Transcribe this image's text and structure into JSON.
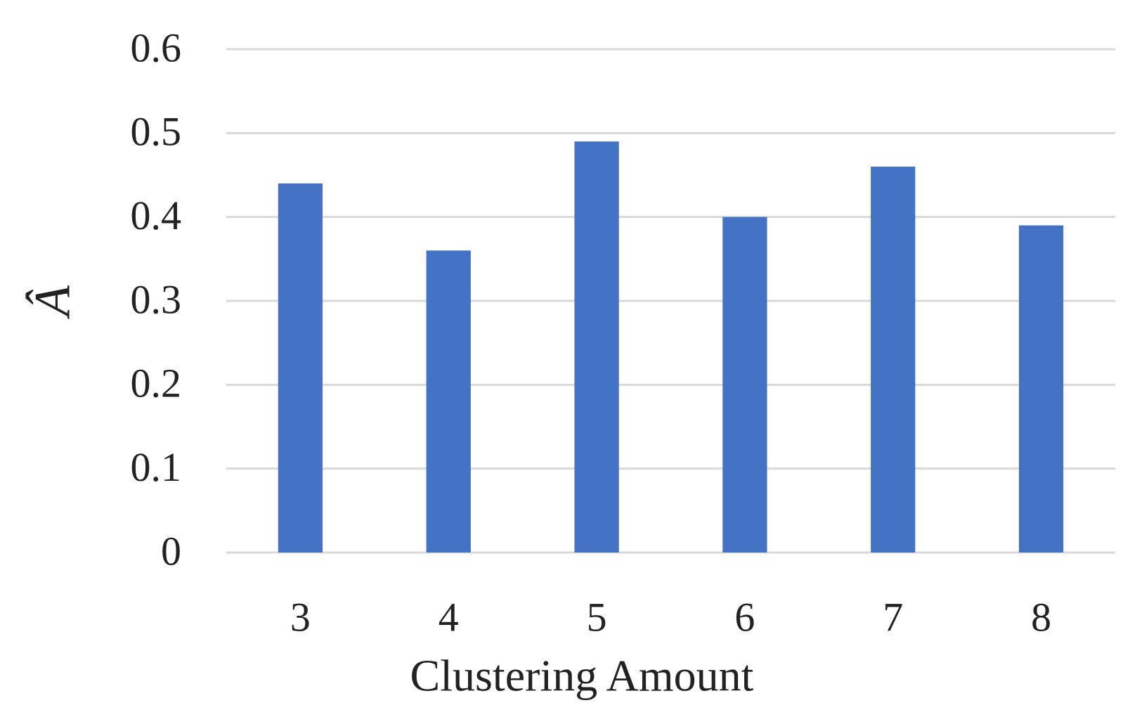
{
  "chart_data": {
    "type": "bar",
    "x_label": "Clustering Amount",
    "y_label": "Â",
    "categories": [
      "3",
      "4",
      "5",
      "6",
      "7",
      "8"
    ],
    "values": [
      0.44,
      0.36,
      0.49,
      0.4,
      0.46,
      0.39
    ],
    "color": "#4472c4",
    "ylim": [
      0,
      0.6
    ],
    "yticks": [
      0,
      0.1,
      0.2,
      0.3,
      0.4,
      0.5,
      0.6
    ],
    "grid": true
  }
}
